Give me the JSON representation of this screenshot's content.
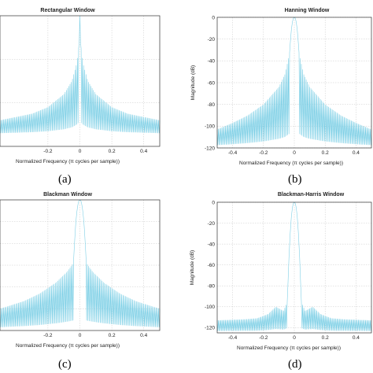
{
  "colors": {
    "line": "#7fd0e6",
    "frame": "#333333",
    "grid": "#c8c8c8"
  },
  "chart_data": [
    {
      "type": "line",
      "panel": "(a)",
      "title": "Rectangular Window",
      "xlabel": "Normalized Frequency (π cycles per sample))",
      "ylabel": "",
      "xticks": [
        "-0.2",
        "0",
        "0.2",
        "0.4"
      ],
      "xtick_values": [
        -0.2,
        0,
        0.2,
        0.4
      ],
      "yticks": [],
      "ytick_values": [],
      "xlim": [
        -0.5,
        0.5
      ],
      "ylim": [
        -60,
        0
      ],
      "grid": true,
      "mainlobe_halfwidth": 0.004,
      "sidelobe_envelope": {
        "x": [
          0.004,
          0.02,
          0.05,
          0.1,
          0.2,
          0.3,
          0.5
        ],
        "y": [
          -13,
          -22,
          -30,
          -36,
          -42,
          -45,
          -48
        ]
      },
      "null_floor": -55
    },
    {
      "type": "line",
      "panel": "(b)",
      "title": "Hanning Window",
      "xlabel": "Normalized Frequency (π cycles per sample))",
      "ylabel": "Magnitude (dB)",
      "xticks": [
        "-0.4",
        "-0.2",
        "0",
        "0.2",
        "0.4"
      ],
      "xtick_values": [
        -0.4,
        -0.2,
        0,
        0.2,
        0.4
      ],
      "yticks": [
        "0",
        "-20",
        "-40",
        "-60",
        "-80",
        "-100",
        "-120"
      ],
      "ytick_values": [
        0,
        -20,
        -40,
        -60,
        -80,
        -100,
        -120
      ],
      "xlim": [
        -0.5,
        0.5
      ],
      "ylim": [
        -120,
        0
      ],
      "grid": true,
      "mainlobe_halfwidth": 0.03,
      "sidelobe_envelope": {
        "x": [
          0.03,
          0.06,
          0.1,
          0.2,
          0.3,
          0.4,
          0.5
        ],
        "y": [
          -32,
          -52,
          -64,
          -80,
          -90,
          -97,
          -103
        ]
      },
      "null_floor": -120
    },
    {
      "type": "line",
      "panel": "(c)",
      "title": "Blackman Window",
      "xlabel": "Normalized Frequency (π cycles per sample))",
      "ylabel": "",
      "xticks": [
        "-0.2",
        "0",
        "0.2",
        "0.4"
      ],
      "xtick_values": [
        -0.2,
        0,
        0.2,
        0.4
      ],
      "yticks": [],
      "ytick_values": [],
      "xlim": [
        -0.5,
        0.5
      ],
      "ylim": [
        -120,
        0
      ],
      "grid": true,
      "mainlobe_halfwidth": 0.04,
      "sidelobe_envelope": {
        "x": [
          0.04,
          0.08,
          0.15,
          0.25,
          0.35,
          0.5
        ],
        "y": [
          -58,
          -66,
          -76,
          -86,
          -93,
          -100
        ]
      },
      "null_floor": -120
    },
    {
      "type": "line",
      "panel": "(d)",
      "title": "Blackman-Harris Window",
      "xlabel": "Normalized Frequency (π cycles per sample))",
      "ylabel": "Magnitude (dB)",
      "xticks": [
        "-0.4",
        "-0.2",
        "0",
        "0.2",
        "0.4"
      ],
      "xtick_values": [
        -0.4,
        -0.2,
        0,
        0.2,
        0.4
      ],
      "yticks": [
        "0",
        "-20",
        "-40",
        "-60",
        "-80",
        "-100",
        "-120"
      ],
      "ytick_values": [
        0,
        -20,
        -40,
        -60,
        -80,
        -100,
        -120
      ],
      "xlim": [
        -0.5,
        0.5
      ],
      "ylim": [
        -125,
        0
      ],
      "grid": true,
      "mainlobe_halfwidth": 0.045,
      "sidelobe_envelope": {
        "x": [
          0.045,
          0.07,
          0.12,
          0.17,
          0.24,
          0.32,
          0.5
        ],
        "y": [
          -95,
          -104,
          -100,
          -107,
          -111,
          -112,
          -113
        ]
      },
      "null_floor": -125
    }
  ]
}
